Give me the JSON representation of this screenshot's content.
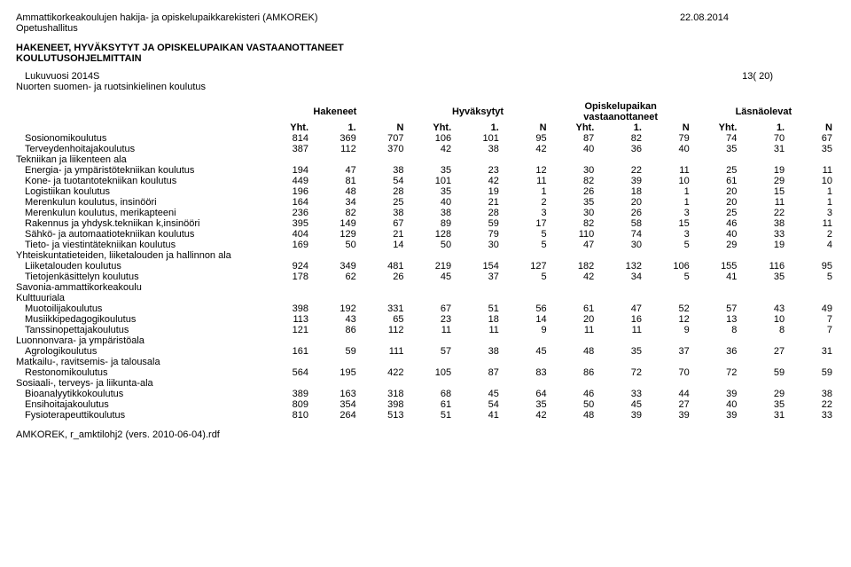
{
  "header": {
    "line1": "Ammattikorkeakoulujen hakija- ja opiskelupaikkarekisteri (AMKOREK)",
    "line2": "Opetushallitus",
    "date": "22.08.2014",
    "title1": "HAKENEET, HYVÄKSYTYT JA OPISKELUPAIKAN VASTAANOTTANEET",
    "title2": "KOULUTUSOHJELMITTAIN",
    "sub1": "Lukuvuosi 2014S",
    "sub2": "Nuorten suomen- ja ruotsinkielinen koulutus",
    "page": "13( 20)"
  },
  "columns": {
    "groups": [
      "Hakeneet",
      "Hyväksytyt",
      "Opiskelupaikan vastaanottaneet",
      "Läsnäolevat"
    ],
    "sub": [
      "Yht.",
      "1.",
      "N"
    ]
  },
  "rows": [
    {
      "label": "Sosionomikoulutus",
      "indent": 1,
      "vals": [
        814,
        369,
        707,
        106,
        101,
        95,
        87,
        82,
        79,
        74,
        70,
        67
      ]
    },
    {
      "label": "Terveydenhoitajakoulutus",
      "indent": 1,
      "vals": [
        387,
        112,
        370,
        42,
        38,
        42,
        40,
        36,
        40,
        35,
        31,
        35
      ]
    },
    {
      "label": "Tekniikan ja liikenteen ala",
      "indent": 0,
      "section": true
    },
    {
      "label": "Energia- ja ympäristötekniikan koulutus",
      "indent": 1,
      "vals": [
        194,
        47,
        38,
        35,
        23,
        12,
        30,
        22,
        11,
        25,
        19,
        11
      ]
    },
    {
      "label": "Kone- ja tuotantotekniikan koulutus",
      "indent": 1,
      "vals": [
        449,
        81,
        54,
        101,
        42,
        11,
        82,
        39,
        10,
        61,
        29,
        10
      ]
    },
    {
      "label": "Logistiikan koulutus",
      "indent": 1,
      "vals": [
        196,
        48,
        28,
        35,
        19,
        1,
        26,
        18,
        1,
        20,
        15,
        1
      ]
    },
    {
      "label": "Merenkulun koulutus, insinööri",
      "indent": 1,
      "vals": [
        164,
        34,
        25,
        40,
        21,
        2,
        35,
        20,
        1,
        20,
        11,
        1
      ]
    },
    {
      "label": "Merenkulun koulutus, merikapteeni",
      "indent": 1,
      "vals": [
        236,
        82,
        38,
        38,
        28,
        3,
        30,
        26,
        3,
        25,
        22,
        3
      ]
    },
    {
      "label": "Rakennus ja yhdysk.tekniikan k,insinööri",
      "indent": 1,
      "vals": [
        395,
        149,
        67,
        89,
        59,
        17,
        82,
        58,
        15,
        46,
        38,
        11
      ]
    },
    {
      "label": "Sähkö- ja automaatiotekniikan koulutus",
      "indent": 1,
      "vals": [
        404,
        129,
        21,
        128,
        79,
        5,
        110,
        74,
        3,
        40,
        33,
        2
      ]
    },
    {
      "label": "Tieto- ja viestintätekniikan koulutus",
      "indent": 1,
      "vals": [
        169,
        50,
        14,
        50,
        30,
        5,
        47,
        30,
        5,
        29,
        19,
        4
      ]
    },
    {
      "label": "Yhteiskuntatieteiden, liiketalouden ja hallinnon ala",
      "indent": 0,
      "section": true
    },
    {
      "label": "Liiketalouden koulutus",
      "indent": 1,
      "vals": [
        924,
        349,
        481,
        219,
        154,
        127,
        182,
        132,
        106,
        155,
        116,
        95
      ]
    },
    {
      "label": "Tietojenkäsittelyn koulutus",
      "indent": 1,
      "vals": [
        178,
        62,
        26,
        45,
        37,
        5,
        42,
        34,
        5,
        41,
        35,
        5
      ]
    },
    {
      "label": "Savonia-ammattikorkeakoulu",
      "indent": 0,
      "section": true
    },
    {
      "label": "Kulttuuriala",
      "indent": 0,
      "section": true
    },
    {
      "label": "Muotoilijakoulutus",
      "indent": 1,
      "vals": [
        398,
        192,
        331,
        67,
        51,
        56,
        61,
        47,
        52,
        57,
        43,
        49
      ]
    },
    {
      "label": "Musiikkipedagogikoulutus",
      "indent": 1,
      "vals": [
        113,
        43,
        65,
        23,
        18,
        14,
        20,
        16,
        12,
        13,
        10,
        7
      ]
    },
    {
      "label": "Tanssinopettajakoulutus",
      "indent": 1,
      "vals": [
        121,
        86,
        112,
        11,
        11,
        9,
        11,
        11,
        9,
        8,
        8,
        7
      ]
    },
    {
      "label": "Luonnonvara- ja ympäristöala",
      "indent": 0,
      "section": true
    },
    {
      "label": "Agrologikoulutus",
      "indent": 1,
      "vals": [
        161,
        59,
        111,
        57,
        38,
        45,
        48,
        35,
        37,
        36,
        27,
        31
      ]
    },
    {
      "label": "Matkailu-, ravitsemis- ja talousala",
      "indent": 0,
      "section": true
    },
    {
      "label": "Restonomikoulutus",
      "indent": 1,
      "vals": [
        564,
        195,
        422,
        105,
        87,
        83,
        86,
        72,
        70,
        72,
        59,
        59
      ]
    },
    {
      "label": "Sosiaali-, terveys- ja liikunta-ala",
      "indent": 0,
      "section": true
    },
    {
      "label": "Bioanalyytikkokoulutus",
      "indent": 1,
      "vals": [
        389,
        163,
        318,
        68,
        45,
        64,
        46,
        33,
        44,
        39,
        29,
        38
      ]
    },
    {
      "label": "Ensihoitajakoulutus",
      "indent": 1,
      "vals": [
        809,
        354,
        398,
        61,
        54,
        35,
        50,
        45,
        27,
        40,
        35,
        22
      ]
    },
    {
      "label": "Fysioterapeuttikoulutus",
      "indent": 1,
      "vals": [
        810,
        264,
        513,
        51,
        41,
        42,
        48,
        39,
        39,
        39,
        31,
        33
      ]
    }
  ],
  "footer": "AMKOREK, r_amktilohj2 (vers. 2010-06-04).rdf"
}
